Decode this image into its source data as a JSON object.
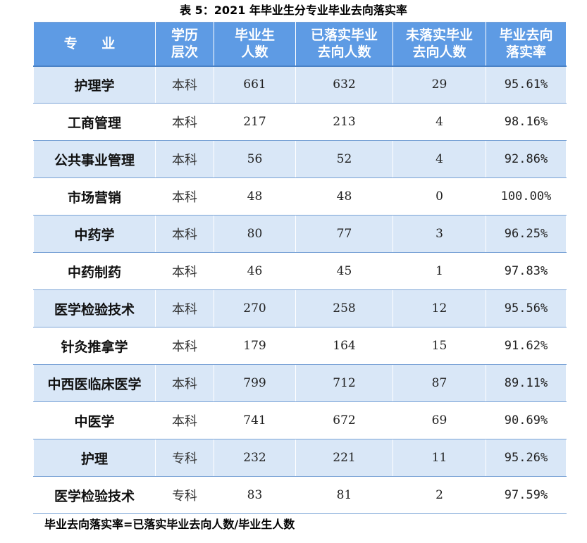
{
  "caption": "表 5：2021 年毕业生分专业毕业去向落实率",
  "table": {
    "headers": [
      [
        "专 业"
      ],
      [
        "学历",
        "层次"
      ],
      [
        "毕业生",
        "人数"
      ],
      [
        "已落实毕业",
        "去向人数"
      ],
      [
        "未落实毕业",
        "去向人数"
      ],
      [
        "毕业去向",
        "落实率"
      ]
    ],
    "rows": [
      {
        "major": "护理学",
        "level": "本科",
        "graduates": "661",
        "placed": "632",
        "unplaced": "29",
        "rate": "95.61%"
      },
      {
        "major": "工商管理",
        "level": "本科",
        "graduates": "217",
        "placed": "213",
        "unplaced": "4",
        "rate": "98.16%"
      },
      {
        "major": "公共事业管理",
        "level": "本科",
        "graduates": "56",
        "placed": "52",
        "unplaced": "4",
        "rate": "92.86%"
      },
      {
        "major": "市场营销",
        "level": "本科",
        "graduates": "48",
        "placed": "48",
        "unplaced": "0",
        "rate": "100.00%"
      },
      {
        "major": "中药学",
        "level": "本科",
        "graduates": "80",
        "placed": "77",
        "unplaced": "3",
        "rate": "96.25%"
      },
      {
        "major": "中药制药",
        "level": "本科",
        "graduates": "46",
        "placed": "45",
        "unplaced": "1",
        "rate": "97.83%"
      },
      {
        "major": "医学检验技术",
        "level": "本科",
        "graduates": "270",
        "placed": "258",
        "unplaced": "12",
        "rate": "95.56%"
      },
      {
        "major": "针灸推拿学",
        "level": "本科",
        "graduates": "179",
        "placed": "164",
        "unplaced": "15",
        "rate": "91.62%"
      },
      {
        "major": "中西医临床医学",
        "level": "本科",
        "graduates": "799",
        "placed": "712",
        "unplaced": "87",
        "rate": "89.11%"
      },
      {
        "major": "中医学",
        "level": "本科",
        "graduates": "741",
        "placed": "672",
        "unplaced": "69",
        "rate": "90.69%"
      },
      {
        "major": "护理",
        "level": "专科",
        "graduates": "232",
        "placed": "221",
        "unplaced": "11",
        "rate": "95.26%"
      },
      {
        "major": "医学检验技术",
        "level": "专科",
        "graduates": "83",
        "placed": "81",
        "unplaced": "2",
        "rate": "97.59%"
      }
    ]
  },
  "footnote": "毕业去向落实率=已落实毕业去向人数/毕业生人数",
  "colors": {
    "header_bg": "#5e9be4",
    "band_bg": "#d9e7f7",
    "border": "#7aa3d6"
  }
}
